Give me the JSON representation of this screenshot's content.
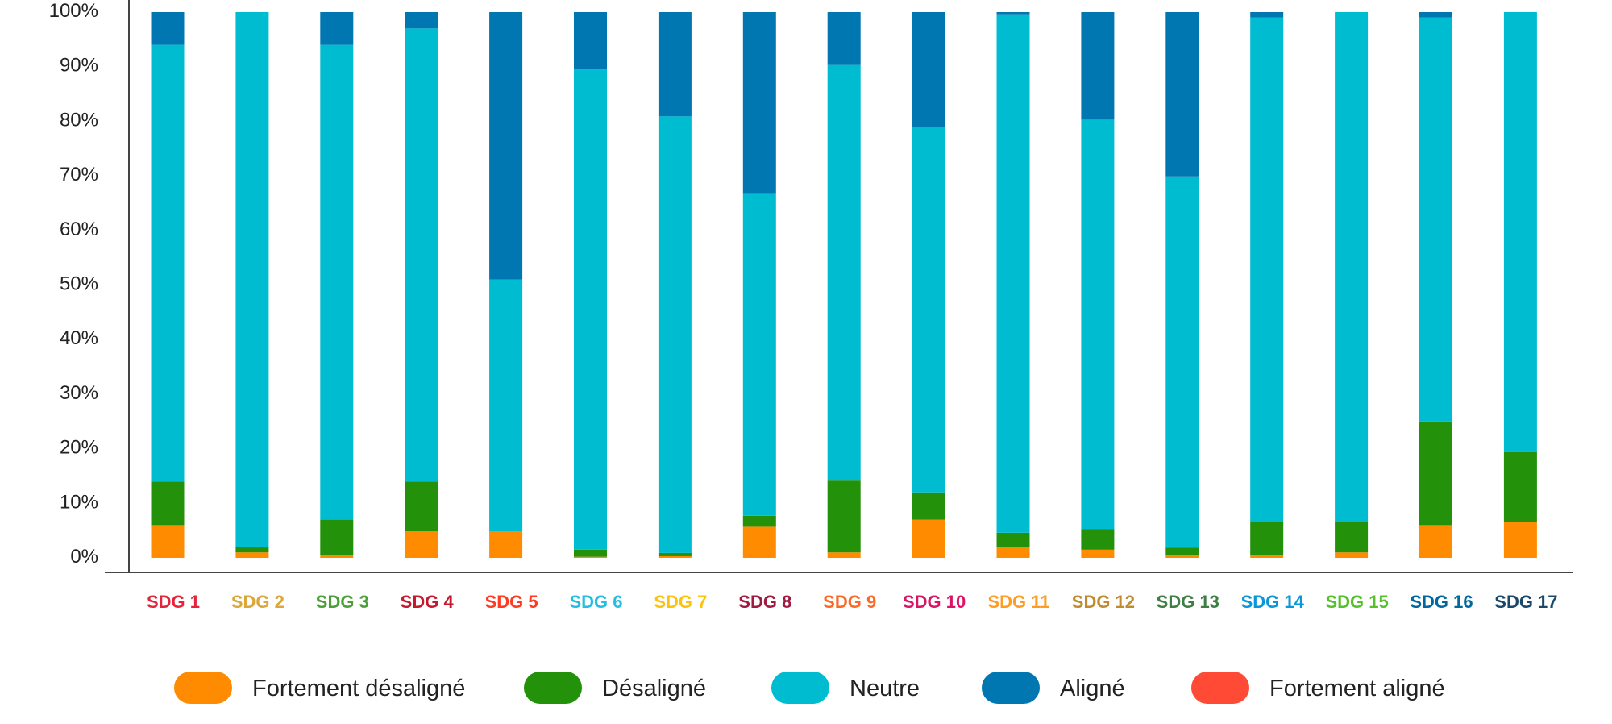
{
  "chart_data": {
    "type": "bar",
    "stacked": true,
    "categories": [
      "SDG 1",
      "SDG 2",
      "SDG 3",
      "SDG 4",
      "SDG 5",
      "SDG 6",
      "SDG 7",
      "SDG 8",
      "SDG 9",
      "SDG 10",
      "SDG 11",
      "SDG 12",
      "SDG 13",
      "SDG 14",
      "SDG 15",
      "SDG 16",
      "SDG 17"
    ],
    "category_colors": [
      "#e5243b",
      "#dda63a",
      "#4c9f38",
      "#c5192d",
      "#ff3a21",
      "#26bde2",
      "#fcc30b",
      "#a21942",
      "#fd6925",
      "#dd1367",
      "#fd9d24",
      "#bf8b2e",
      "#3f7e44",
      "#0a97d9",
      "#56c02b",
      "#00689d",
      "#19486a"
    ],
    "series": [
      {
        "name": "Fortement désaligné",
        "color": "#ff8c00",
        "values": [
          6,
          1,
          0.5,
          5,
          5,
          0.2,
          0.3,
          5.7,
          1,
          7,
          2,
          1.5,
          0.5,
          0.5,
          1,
          6,
          6.6
        ]
      },
      {
        "name": "Désaligné",
        "color": "#23910a",
        "values": [
          8,
          1,
          6.5,
          9,
          0,
          1.3,
          0.6,
          2,
          13.3,
          5,
          2.6,
          3.8,
          1.4,
          6,
          5.5,
          19,
          12.8
        ]
      },
      {
        "name": "Neutre",
        "color": "#00bcd0",
        "values": [
          80,
          98,
          87,
          83,
          46,
          88,
          80,
          59,
          76,
          67,
          95,
          75,
          68,
          92.5,
          93.5,
          74,
          80.6
        ]
      },
      {
        "name": "Aligné",
        "color": "#0077b0",
        "values": [
          6,
          0,
          6,
          3,
          49,
          10.5,
          19.1,
          33.3,
          9.7,
          21,
          0.4,
          19.7,
          30.1,
          1,
          0,
          1,
          0
        ]
      },
      {
        "name": "Fortement aligné",
        "color": "#ff4a35",
        "values": [
          0,
          0,
          0,
          0,
          0,
          0,
          0,
          0,
          0,
          0,
          0,
          0,
          0,
          0,
          0,
          0,
          0
        ]
      }
    ],
    "yticks": [
      "100%",
      "90%",
      "80%",
      "70%",
      "60%",
      "50%",
      "40%",
      "30%",
      "20%",
      "10%",
      "0%"
    ],
    "ylim": [
      0,
      100
    ],
    "legend": "bottom"
  }
}
